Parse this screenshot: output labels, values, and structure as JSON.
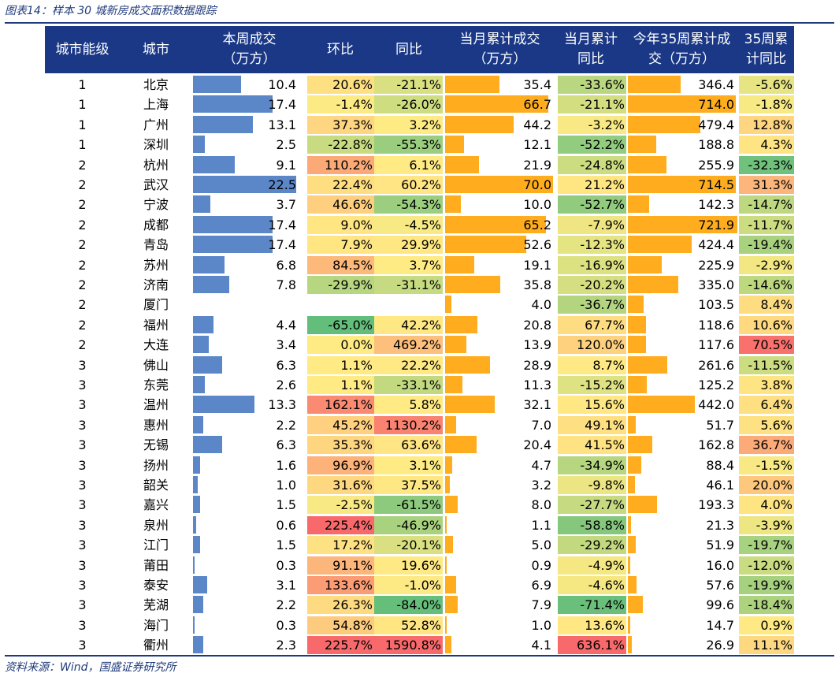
{
  "caption": "图表14：样本 30 城新房成交面积数据跟踪",
  "source": "资料来源：Wind，国盛证券研究所",
  "headers": [
    "城市能级",
    "城市",
    "本周成交\n（万方）",
    "环比",
    "同比",
    "当月累计成交\n（万方）",
    "当月累计\n同比",
    "今年35周累计成\n交（万方）",
    "35周累\n计同比"
  ],
  "colors": {
    "header_bg": "#1a3886",
    "weekly_bar": "#5b87c9",
    "cum_bar": "#ffad1f"
  },
  "rows": [
    {
      "tier": "1",
      "city": "北京",
      "weekly": 10.4,
      "wow": 20.6,
      "yoy": -21.1,
      "month_cum": 35.4,
      "month_yoy": -33.6,
      "ytd": 346.4,
      "ytd_yoy": -5.6
    },
    {
      "tier": "1",
      "city": "上海",
      "weekly": 17.4,
      "wow": -1.4,
      "yoy": -26.0,
      "month_cum": 66.7,
      "month_yoy": -21.1,
      "ytd": 714.0,
      "ytd_yoy": -1.8
    },
    {
      "tier": "1",
      "city": "广州",
      "weekly": 13.1,
      "wow": 37.3,
      "yoy": 3.2,
      "month_cum": 44.2,
      "month_yoy": -3.2,
      "ytd": 479.4,
      "ytd_yoy": 12.8
    },
    {
      "tier": "1",
      "city": "深圳",
      "weekly": 2.5,
      "wow": -22.8,
      "yoy": -55.3,
      "month_cum": 12.1,
      "month_yoy": -52.2,
      "ytd": 188.8,
      "ytd_yoy": 4.3
    },
    {
      "tier": "2",
      "city": "杭州",
      "weekly": 9.1,
      "wow": 110.2,
      "yoy": 6.1,
      "month_cum": 21.9,
      "month_yoy": -24.8,
      "ytd": 255.9,
      "ytd_yoy": -32.3
    },
    {
      "tier": "2",
      "city": "武汉",
      "weekly": 22.5,
      "wow": 22.4,
      "yoy": 60.2,
      "month_cum": 70.0,
      "month_yoy": 21.2,
      "ytd": 714.5,
      "ytd_yoy": 31.3
    },
    {
      "tier": "2",
      "city": "宁波",
      "weekly": 3.7,
      "wow": 46.6,
      "yoy": -54.3,
      "month_cum": 10.0,
      "month_yoy": -52.7,
      "ytd": 142.3,
      "ytd_yoy": -14.7
    },
    {
      "tier": "2",
      "city": "成都",
      "weekly": 17.4,
      "wow": 9.0,
      "yoy": -4.5,
      "month_cum": 65.2,
      "month_yoy": -7.9,
      "ytd": 721.9,
      "ytd_yoy": -11.7
    },
    {
      "tier": "2",
      "city": "青岛",
      "weekly": 17.4,
      "wow": 7.9,
      "yoy": 29.9,
      "month_cum": 52.6,
      "month_yoy": -12.3,
      "ytd": 424.4,
      "ytd_yoy": -19.4
    },
    {
      "tier": "2",
      "city": "苏州",
      "weekly": 6.8,
      "wow": 84.5,
      "yoy": 3.7,
      "month_cum": 19.1,
      "month_yoy": -16.9,
      "ytd": 225.9,
      "ytd_yoy": -2.9
    },
    {
      "tier": "2",
      "city": "济南",
      "weekly": 7.8,
      "wow": -29.9,
      "yoy": -31.1,
      "month_cum": 35.8,
      "month_yoy": -20.2,
      "ytd": 335.0,
      "ytd_yoy": -14.6
    },
    {
      "tier": "2",
      "city": "厦门",
      "weekly": null,
      "wow": null,
      "yoy": null,
      "month_cum": 4.0,
      "month_yoy": -36.7,
      "ytd": 103.5,
      "ytd_yoy": 8.4
    },
    {
      "tier": "2",
      "city": "福州",
      "weekly": 4.4,
      "wow": -65.0,
      "yoy": 42.2,
      "month_cum": 20.8,
      "month_yoy": 67.7,
      "ytd": 118.6,
      "ytd_yoy": 10.6
    },
    {
      "tier": "2",
      "city": "大连",
      "weekly": 3.4,
      "wow": 0.0,
      "yoy": 469.2,
      "month_cum": 13.9,
      "month_yoy": 120.0,
      "ytd": 117.6,
      "ytd_yoy": 70.5
    },
    {
      "tier": "3",
      "city": "佛山",
      "weekly": 6.3,
      "wow": 1.1,
      "yoy": 22.2,
      "month_cum": 28.9,
      "month_yoy": 8.7,
      "ytd": 261.6,
      "ytd_yoy": -11.5
    },
    {
      "tier": "3",
      "city": "东莞",
      "weekly": 2.6,
      "wow": 1.1,
      "yoy": -33.1,
      "month_cum": 11.3,
      "month_yoy": -15.2,
      "ytd": 125.2,
      "ytd_yoy": 3.8
    },
    {
      "tier": "3",
      "city": "温州",
      "weekly": 13.3,
      "wow": 162.1,
      "yoy": 5.8,
      "month_cum": 32.1,
      "month_yoy": 15.6,
      "ytd": 442.0,
      "ytd_yoy": 6.4
    },
    {
      "tier": "3",
      "city": "惠州",
      "weekly": 2.2,
      "wow": 45.2,
      "yoy": 1130.2,
      "month_cum": 7.0,
      "month_yoy": 49.1,
      "ytd": 51.7,
      "ytd_yoy": 5.6
    },
    {
      "tier": "3",
      "city": "无锡",
      "weekly": 6.3,
      "wow": 35.3,
      "yoy": 63.6,
      "month_cum": 20.4,
      "month_yoy": 41.5,
      "ytd": 162.8,
      "ytd_yoy": 36.7
    },
    {
      "tier": "3",
      "city": "扬州",
      "weekly": 1.6,
      "wow": 96.9,
      "yoy": 3.1,
      "month_cum": 4.7,
      "month_yoy": -34.9,
      "ytd": 88.4,
      "ytd_yoy": -1.5
    },
    {
      "tier": "3",
      "city": "韶关",
      "weekly": 1.0,
      "wow": 31.6,
      "yoy": 37.5,
      "month_cum": 3.2,
      "month_yoy": -9.8,
      "ytd": 46.1,
      "ytd_yoy": 20.0
    },
    {
      "tier": "3",
      "city": "嘉兴",
      "weekly": 1.5,
      "wow": -2.5,
      "yoy": -61.5,
      "month_cum": 8.0,
      "month_yoy": -27.7,
      "ytd": 193.3,
      "ytd_yoy": 4.0
    },
    {
      "tier": "3",
      "city": "泉州",
      "weekly": 0.6,
      "wow": 225.4,
      "yoy": -46.9,
      "month_cum": 1.1,
      "month_yoy": -58.8,
      "ytd": 21.3,
      "ytd_yoy": -3.9
    },
    {
      "tier": "3",
      "city": "江门",
      "weekly": 1.5,
      "wow": 17.2,
      "yoy": -20.1,
      "month_cum": 5.0,
      "month_yoy": -29.2,
      "ytd": 51.9,
      "ytd_yoy": -19.7
    },
    {
      "tier": "3",
      "city": "莆田",
      "weekly": 0.3,
      "wow": 91.1,
      "yoy": 19.6,
      "month_cum": 0.9,
      "month_yoy": -4.9,
      "ytd": 16.0,
      "ytd_yoy": -12.0
    },
    {
      "tier": "3",
      "city": "泰安",
      "weekly": 3.1,
      "wow": 133.6,
      "yoy": -1.0,
      "month_cum": 6.9,
      "month_yoy": -4.6,
      "ytd": 57.6,
      "ytd_yoy": -19.9
    },
    {
      "tier": "3",
      "city": "芜湖",
      "weekly": 2.2,
      "wow": 26.3,
      "yoy": -84.0,
      "month_cum": 7.9,
      "month_yoy": -71.4,
      "ytd": 99.6,
      "ytd_yoy": -18.4
    },
    {
      "tier": "3",
      "city": "海门",
      "weekly": 0.3,
      "wow": 54.8,
      "yoy": 52.8,
      "month_cum": 1.0,
      "month_yoy": 13.6,
      "ytd": 14.7,
      "ytd_yoy": 0.9
    },
    {
      "tier": "3",
      "city": "衢州",
      "weekly": 2.3,
      "wow": 225.7,
      "yoy": 1590.8,
      "month_cum": 4.1,
      "month_yoy": 636.1,
      "ytd": 26.9,
      "ytd_yoy": 11.1
    }
  ]
}
